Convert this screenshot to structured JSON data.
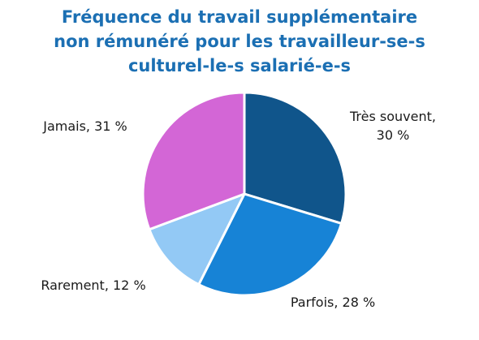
{
  "chart_data": {
    "type": "pie",
    "title_lines": [
      "Fréquence du travail supplémentaire",
      "non rémunéré pour les travailleur-se-s",
      "culturel-le-s salarié-e-s"
    ],
    "slices": [
      {
        "label": "Très souvent",
        "value": 30,
        "display_lines": [
          "Très souvent,",
          "30 %"
        ],
        "color": "#10558b"
      },
      {
        "label": "Parfois",
        "value": 28,
        "display_lines": [
          "Parfois, 28 %"
        ],
        "color": "#1783d6"
      },
      {
        "label": "Rarement",
        "value": 12,
        "display_lines": [
          "Rarement, 12 %"
        ],
        "color": "#93c9f5"
      },
      {
        "label": "Jamais",
        "value": 31,
        "display_lines": [
          "Jamais, 31 %"
        ],
        "color": "#d366d6"
      }
    ],
    "legend": "none"
  }
}
